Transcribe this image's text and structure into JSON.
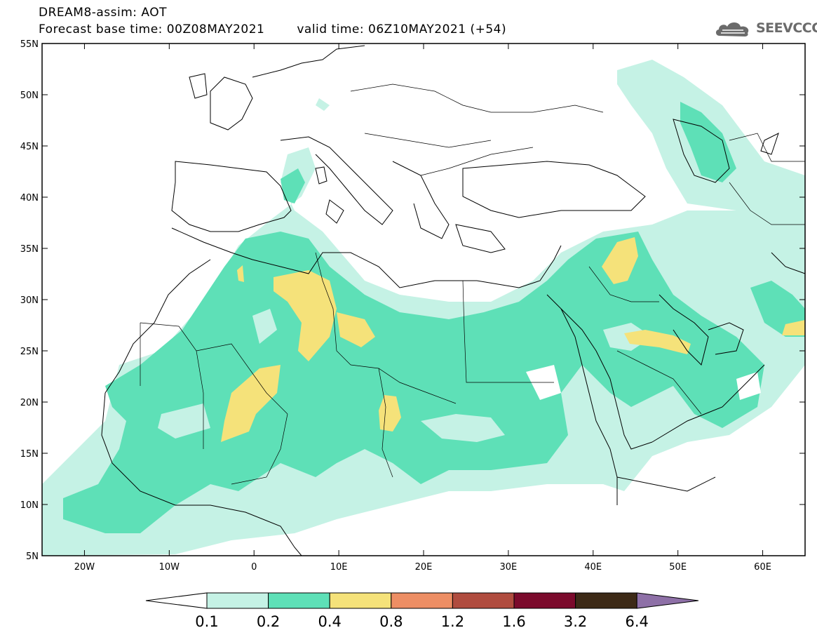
{
  "header": {
    "line1": "DREAM8-assim: AOT",
    "base_time": "Forecast base time: 00Z08MAY2021",
    "valid_time": "valid time: 06Z10MAY2021 (+54)"
  },
  "logo": {
    "text": "SEEVCCC",
    "icon": "cloud-logo-icon",
    "color": "#6b6b6b"
  },
  "map": {
    "lon_range": [
      -25,
      65
    ],
    "lat_range": [
      5,
      55
    ],
    "lat_labels": [
      "55N",
      "50N",
      "45N",
      "40N",
      "35N",
      "30N",
      "25N",
      "20N",
      "15N",
      "10N",
      "5N"
    ],
    "lon_labels": [
      "20W",
      "10W",
      "0",
      "10E",
      "20E",
      "30E",
      "40E",
      "50E",
      "60E"
    ],
    "variable": "AOT"
  },
  "colorbar": {
    "labels": [
      "0.1",
      "0.2",
      "0.4",
      "0.8",
      "1.2",
      "1.6",
      "3.2",
      "6.4"
    ],
    "colors": [
      "#c5f2e5",
      "#5ee0b7",
      "#f5e27a",
      "#ed8e64",
      "#b04c3f",
      "#7b0a2c",
      "#3d2a17",
      "#8e70a7"
    ],
    "under_color": "#ffffff"
  }
}
